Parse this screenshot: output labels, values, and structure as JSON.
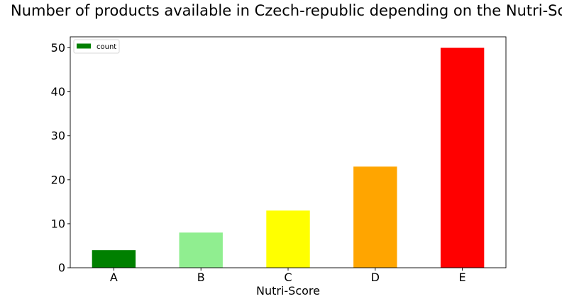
{
  "chart_data": {
    "type": "bar",
    "title": "Number of products available in Czech-republic depending on the Nutri-Score",
    "xlabel": "Nutri-Score",
    "ylabel": "",
    "categories": [
      "A",
      "B",
      "C",
      "D",
      "E"
    ],
    "series": [
      {
        "name": "count",
        "values": [
          4,
          8,
          13,
          23,
          50
        ],
        "colors": [
          "#008000",
          "#90ee90",
          "#ffff00",
          "#ffa500",
          "#ff0000"
        ]
      }
    ],
    "ylim": [
      0,
      52.5
    ],
    "yticks": [
      "0",
      "10",
      "20",
      "30",
      "40",
      "50"
    ],
    "grid": false,
    "legend": {
      "position": "top-left",
      "entries": [
        {
          "label": "count",
          "color": "#008000"
        }
      ]
    }
  }
}
